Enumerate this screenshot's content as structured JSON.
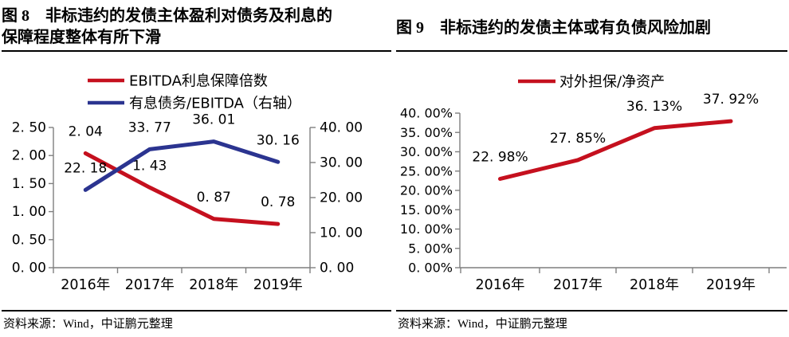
{
  "colors": {
    "red": "#C5101E",
    "blue": "#2B3490",
    "axis": "#7F7F7F",
    "text": "#000000",
    "divider": "#000000"
  },
  "panels": [
    {
      "figure_label": "图 8",
      "title_lines": [
        "图 8　非标违约的发债主体盈利对债务及利息的",
        "保障程度整体有所下滑"
      ],
      "source": "资料来源：Wind，中证鹏元整理"
    },
    {
      "figure_label": "图 9",
      "title_lines": [
        "图 9　非标违约的发债主体或有负债风险加剧"
      ],
      "source": "资料来源：Wind，中证鹏元整理"
    }
  ],
  "chart_data": [
    {
      "type": "line",
      "title": "图 8 非标违约的发债主体盈利对债务及利息的保障程度整体有所下滑",
      "categories": [
        "2016年",
        "2017年",
        "2018年",
        "2019年"
      ],
      "series": [
        {
          "name": "EBITDA利息保障倍数",
          "axis": "left",
          "color": "#C5101E",
          "values": [
            2.04,
            1.43,
            0.87,
            0.78
          ],
          "point_labels": [
            "2. 04",
            "1. 43",
            "0. 87",
            "0. 78"
          ]
        },
        {
          "name": "有息债务/EBITDA（右轴）",
          "axis": "right",
          "color": "#2B3490",
          "values": [
            22.18,
            33.77,
            36.01,
            30.16
          ],
          "point_labels": [
            "22. 18",
            "33. 77",
            "36. 01",
            "30. 16"
          ]
        }
      ],
      "left_axis": {
        "min": 0,
        "max": 2.5,
        "step": 0.5,
        "tick_labels": [
          "2. 50",
          "2. 00",
          "1. 50",
          "1. 00",
          "0. 50",
          "0. 00"
        ]
      },
      "right_axis": {
        "min": 0,
        "max": 40,
        "step": 10,
        "tick_labels": [
          "40. 00",
          "30. 00",
          "20. 00",
          "10. 00",
          "0. 00"
        ]
      },
      "legend_position": "top",
      "grid": false,
      "xlabel": "",
      "ylabel": ""
    },
    {
      "type": "line",
      "title": "图 9 非标违约的发债主体或有负债风险加剧",
      "categories": [
        "2016年",
        "2017年",
        "2018年",
        "2019年"
      ],
      "series": [
        {
          "name": "对外担保/净资产",
          "axis": "left",
          "color": "#C5101E",
          "values": [
            22.98,
            27.85,
            36.13,
            37.92
          ],
          "point_labels": [
            "22. 98%",
            "27. 85%",
            "36. 13%",
            "37. 92%"
          ]
        }
      ],
      "y_axis": {
        "min": 0,
        "max": 40,
        "step": 5,
        "tick_labels": [
          "40. 00%",
          "35. 00%",
          "30. 00%",
          "25. 00%",
          "20. 00%",
          "15. 00%",
          "10. 00%",
          "5. 00%",
          "0. 00%"
        ]
      },
      "legend_position": "top",
      "grid": false,
      "xlabel": "",
      "ylabel": ""
    }
  ]
}
